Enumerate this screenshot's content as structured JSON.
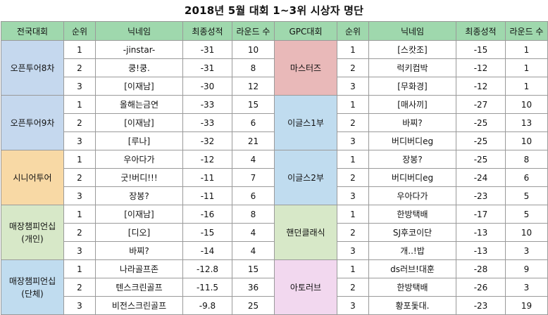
{
  "title": "2018년 5월 대회 1~3위 시상자 명단",
  "headers": {
    "left": [
      "전국대회",
      "순위",
      "닉네임",
      "최종성적",
      "라운드 수"
    ],
    "right": [
      "GPC대회",
      "순위",
      "닉네임",
      "최종성적",
      "라운드 수"
    ]
  },
  "colors": {
    "header": "#9fd8ad",
    "blue": "#c5d8ee",
    "orange": "#f8d9a5",
    "green": "#d7e8c8",
    "pink": "#e9b9b9",
    "sky": "#c0dcef",
    "purple": "#f2d8ef"
  },
  "left_groups": [
    {
      "name": [
        "오픈투어8차"
      ],
      "rows": [
        {
          "rank": "1",
          "nick": "-jinstar-",
          "score": "-31",
          "rounds": "10"
        },
        {
          "rank": "2",
          "nick": "쿵!쿵.",
          "score": "-31",
          "rounds": "8"
        },
        {
          "rank": "3",
          "nick": "[이재남]",
          "score": "-30",
          "rounds": "12"
        }
      ]
    },
    {
      "name": [
        "오픈투어9차"
      ],
      "rows": [
        {
          "rank": "1",
          "nick": "올해는금연",
          "score": "-33",
          "rounds": "15"
        },
        {
          "rank": "2",
          "nick": "[이재남]",
          "score": "-33",
          "rounds": "6"
        },
        {
          "rank": "3",
          "nick": "[루나]",
          "score": "-32",
          "rounds": "21"
        }
      ]
    },
    {
      "name": [
        "시니어투어"
      ],
      "rows": [
        {
          "rank": "1",
          "nick": "우아다가",
          "score": "-12",
          "rounds": "4"
        },
        {
          "rank": "2",
          "nick": "굿!버디!!!",
          "score": "-11",
          "rounds": "7"
        },
        {
          "rank": "3",
          "nick": "장봉?",
          "score": "-11",
          "rounds": "6"
        }
      ]
    },
    {
      "name": [
        "매장챔피언십",
        "(개인)"
      ],
      "rows": [
        {
          "rank": "1",
          "nick": "[이재남]",
          "score": "-16",
          "rounds": "8"
        },
        {
          "rank": "2",
          "nick": "[디오]",
          "score": "-15",
          "rounds": "4"
        },
        {
          "rank": "3",
          "nick": "바찌?",
          "score": "-14",
          "rounds": "4"
        }
      ]
    },
    {
      "name": [
        "매장챔피언십",
        "(단체)"
      ],
      "rows": [
        {
          "rank": "1",
          "nick": "나라골프존",
          "score": "-12.8",
          "rounds": "15"
        },
        {
          "rank": "2",
          "nick": "텐스크린골프",
          "score": "-11.5",
          "rounds": "36"
        },
        {
          "rank": "3",
          "nick": "비전스크린골프",
          "score": "-9.8",
          "rounds": "25"
        }
      ]
    }
  ],
  "right_groups": [
    {
      "name": [
        "마스터즈"
      ],
      "rows": [
        {
          "rank": "1",
          "nick": "[스캇조]",
          "score": "-15",
          "rounds": "1"
        },
        {
          "rank": "2",
          "nick": "럭키컴박",
          "score": "-12",
          "rounds": "1"
        },
        {
          "rank": "3",
          "nick": "[무화경]",
          "score": "-12",
          "rounds": "1"
        }
      ]
    },
    {
      "name": [
        "이글스1부"
      ],
      "rows": [
        {
          "rank": "1",
          "nick": "[매사끼]",
          "score": "-27",
          "rounds": "10"
        },
        {
          "rank": "2",
          "nick": "바찌?",
          "score": "-25",
          "rounds": "13"
        },
        {
          "rank": "3",
          "nick": "버디버디eg",
          "score": "-25",
          "rounds": "10"
        }
      ]
    },
    {
      "name": [
        "이글스2부"
      ],
      "rows": [
        {
          "rank": "1",
          "nick": "장봉?",
          "score": "-25",
          "rounds": "8"
        },
        {
          "rank": "2",
          "nick": "버디버디eg",
          "score": "-24",
          "rounds": "6"
        },
        {
          "rank": "3",
          "nick": "우아다가",
          "score": "-23",
          "rounds": "5"
        }
      ]
    },
    {
      "name": [
        "핸던클래식"
      ],
      "rows": [
        {
          "rank": "1",
          "nick": "한방택배",
          "score": "-17",
          "rounds": "5"
        },
        {
          "rank": "2",
          "nick": "SJ후코이단",
          "score": "-13",
          "rounds": "10"
        },
        {
          "rank": "3",
          "nick": "개..!밥",
          "score": "-13",
          "rounds": "3"
        }
      ]
    },
    {
      "name": [
        "아토러브"
      ],
      "rows": [
        {
          "rank": "1",
          "nick": "ds러브!대훈",
          "score": "-28",
          "rounds": "9"
        },
        {
          "rank": "2",
          "nick": "한방택배",
          "score": "-26",
          "rounds": "3"
        },
        {
          "rank": "3",
          "nick": "황포돛대.",
          "score": "-23",
          "rounds": "19"
        }
      ]
    }
  ]
}
